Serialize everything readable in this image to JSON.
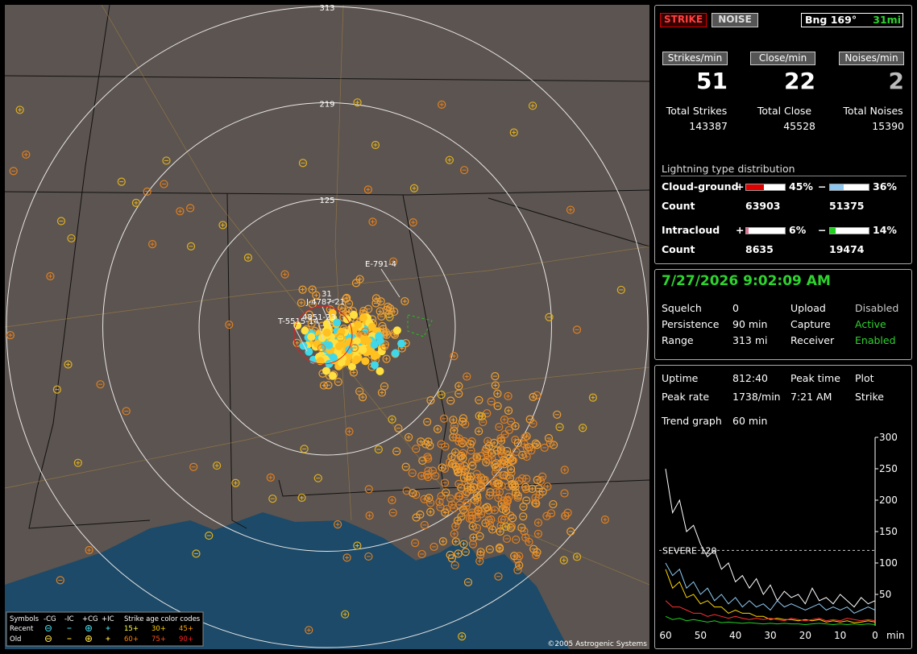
{
  "map": {
    "range_rings": [
      125,
      219,
      313
    ],
    "storm_labels": [
      "E-791-4",
      "J-4787-21",
      "4851-23",
      "T-5515-14",
      "31"
    ],
    "copyright": "©2005 Astrogenic Systems",
    "legend": {
      "symbols_title": "Symbols",
      "symbol_types": [
        "-CG",
        "-IC",
        "+CG",
        "+IC"
      ],
      "age_title": "Strike age color codes",
      "rows": [
        {
          "name": "Recent",
          "ages": [
            "15+",
            "30+",
            "45+"
          ]
        },
        {
          "name": "Old",
          "ages": [
            "60+",
            "75+",
            "90+"
          ]
        }
      ]
    }
  },
  "mode_buttons": [
    "STRIKE",
    "NOISE"
  ],
  "bearing": "Bng 169°",
  "distance": "31mi",
  "rates": [
    {
      "label": "Strikes/min",
      "value": 51,
      "total_label": "Total Strikes",
      "total": 143387
    },
    {
      "label": "Close/min",
      "value": 22,
      "total_label": "Total Close",
      "total": 45528
    },
    {
      "label": "Noises/min",
      "value": 2,
      "total_label": "Total Noises",
      "total": 15390
    }
  ],
  "distribution": {
    "title": "Lightning type distribution",
    "count_label": "Count",
    "rows": [
      {
        "name": "Cloud-ground",
        "positive": {
          "sign": "+",
          "percent": {
            "value": 45,
            "label": "45%"
          },
          "count": 63903,
          "color": "#e00000"
        },
        "negative": {
          "sign": "−",
          "percent": {
            "value": 36,
            "label": "36%"
          },
          "count": 51375,
          "color": "#8ec8f0"
        }
      },
      {
        "name": "Intracloud",
        "positive": {
          "sign": "+",
          "percent": {
            "value": 6,
            "label": "6%"
          },
          "count": 8635,
          "color": "#e07090"
        },
        "negative": {
          "sign": "−",
          "percent": {
            "value": 14,
            "label": "14%"
          },
          "count": 19474,
          "color": "#20d020"
        }
      }
    ]
  },
  "clock": "7/27/2026 9:02:09 AM",
  "settings": [
    {
      "label": "Squelch",
      "value": "0",
      "label2": "Upload",
      "value2": "Disabled"
    },
    {
      "label": "Persistence",
      "value": "90 min",
      "label2": "Capture",
      "value2": "Active"
    },
    {
      "label": "Range",
      "value": "313 mi",
      "label2": "Receiver",
      "value2": "Enabled"
    }
  ],
  "stats": {
    "uptime": {
      "label": "Uptime",
      "value": "812:40"
    },
    "peak_time": {
      "label": "Peak time",
      "value": "7:21 AM"
    },
    "plot": {
      "label": "Plot",
      "value": "Strike"
    },
    "peak_rate": {
      "label": "Peak rate",
      "value": "1738/min"
    },
    "trend": {
      "label": "Trend graph",
      "value": "60 min"
    }
  },
  "trend_graph": {
    "type": "line",
    "x": [
      60,
      58,
      56,
      54,
      52,
      50,
      48,
      46,
      44,
      42,
      40,
      38,
      36,
      34,
      32,
      30,
      28,
      26,
      24,
      22,
      20,
      18,
      16,
      14,
      12,
      10,
      8,
      6,
      4,
      2,
      0
    ],
    "xlim": [
      60,
      0
    ],
    "xticks": [
      60,
      50,
      40,
      30,
      20,
      10,
      0
    ],
    "x_unit": "min",
    "ylim": [
      0,
      300
    ],
    "yticks": [
      50,
      100,
      150,
      200,
      250,
      300
    ],
    "severe": {
      "value": 120,
      "label": "SEVERE 120"
    },
    "series": [
      {
        "color": "#ffffff",
        "values": [
          250,
          180,
          200,
          150,
          160,
          130,
          110,
          120,
          90,
          100,
          70,
          80,
          60,
          75,
          50,
          65,
          40,
          55,
          45,
          50,
          35,
          60,
          40,
          45,
          35,
          50,
          40,
          30,
          45,
          35,
          40
        ]
      },
      {
        "color": "#8ec8f0",
        "values": [
          100,
          80,
          90,
          60,
          70,
          50,
          60,
          40,
          50,
          35,
          45,
          30,
          40,
          30,
          35,
          25,
          40,
          30,
          35,
          30,
          25,
          30,
          35,
          25,
          30,
          25,
          30,
          20,
          25,
          30,
          25
        ]
      },
      {
        "color": "#ffd700",
        "values": [
          90,
          60,
          70,
          45,
          50,
          35,
          40,
          30,
          30,
          20,
          25,
          20,
          20,
          15,
          15,
          10,
          12,
          10,
          10,
          8,
          10,
          8,
          10,
          6,
          8,
          6,
          8,
          5,
          6,
          8,
          6
        ]
      },
      {
        "color": "#ff3030",
        "values": [
          40,
          30,
          30,
          25,
          20,
          20,
          15,
          18,
          15,
          12,
          15,
          12,
          10,
          12,
          10,
          12,
          10,
          8,
          12,
          10,
          8,
          10,
          12,
          8,
          10,
          8,
          12,
          10,
          8,
          10,
          8
        ]
      },
      {
        "color": "#20d020",
        "values": [
          15,
          10,
          12,
          8,
          10,
          8,
          6,
          8,
          5,
          6,
          5,
          4,
          5,
          4,
          3,
          4,
          3,
          4,
          3,
          3,
          2,
          3,
          4,
          3,
          2,
          3,
          2,
          3,
          2,
          3,
          2
        ]
      }
    ]
  }
}
